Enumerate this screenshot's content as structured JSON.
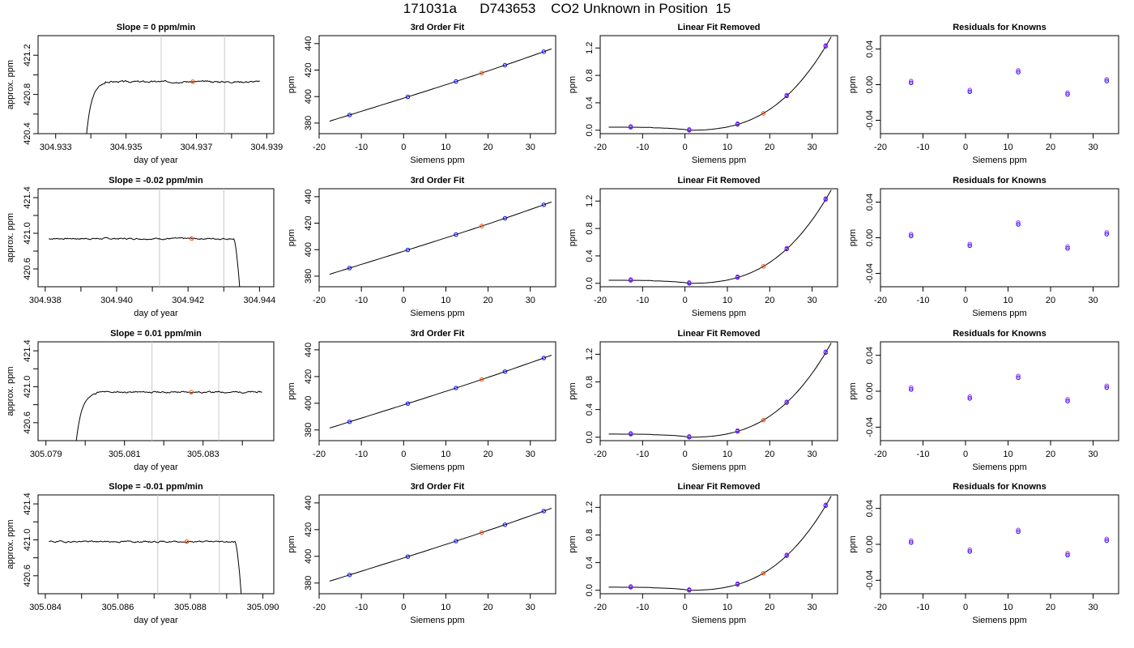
{
  "title": "171031a      D743653    CO2 Unknown in Position  15",
  "colors": {
    "trace": "#000000",
    "window_lines": "#c8c8c8",
    "known_marker": "#0000ff",
    "known_marker_alt": "#a020f0",
    "unknown_marker": "#ff4500",
    "axis": "#000000"
  },
  "rows": [
    {
      "trace": {
        "title": "Slope =  0  ppm/min",
        "xlabel": "day of year",
        "ylabel": "approx. ppm",
        "xlim": [
          304.9325,
          304.9392
        ],
        "ylim": [
          420.4,
          421.4
        ],
        "xticks": [
          304.933,
          304.934,
          304.935,
          304.936,
          304.937,
          304.938,
          304.939
        ],
        "xticklabels": [
          "304.933",
          "",
          "304.935",
          "",
          "304.937",
          "",
          "304.939"
        ],
        "yticks": [
          420.4,
          420.6,
          420.8,
          421.0,
          421.2
        ],
        "yticklabels": [
          "420.4",
          "",
          "420.8",
          "",
          "421.2"
        ],
        "window": [
          304.936,
          304.9378
        ],
        "shape": "rise",
        "t0": 304.9338,
        "t1": 304.9388,
        "level": 420.93,
        "unknown_point": [
          304.9369,
          420.93
        ],
        "seed": 3
      },
      "fit": {
        "title": "3rd Order Fit",
        "xlabel": "Siemens ppm",
        "ylabel": "ppm",
        "xlim": [
          -20,
          36
        ],
        "ylim": [
          372,
          446
        ],
        "xticks": [
          -20,
          -10,
          0,
          10,
          20,
          30
        ],
        "yticks": [
          380,
          400,
          420,
          440
        ],
        "knowns_x": [
          -12.8,
          1.0,
          12.4,
          24.0,
          33.2
        ],
        "unknown_x": 18.5,
        "curve": {
          "a": 398.8,
          "b": 1.0018,
          "c": 0.00095,
          "d": 2.2e-05
        }
      },
      "linear_removed": {
        "title": "Linear Fit Removed",
        "xlabel": "Siemens ppm",
        "ylabel": "ppm",
        "xlim": [
          -20,
          36
        ],
        "ylim": [
          -0.05,
          1.38
        ],
        "xticks": [
          -20,
          -10,
          0,
          10,
          20,
          30
        ],
        "yticks": [
          0.0,
          0.4,
          0.8,
          1.2
        ],
        "yticklabels": [
          "0.0",
          "0.4",
          "0.8",
          "1.2"
        ],
        "knowns_x": [
          -12.8,
          1.0,
          12.4,
          24.0,
          33.2
        ],
        "unknown_x": 18.5
      },
      "residuals": {
        "title": "Residuals for Knowns",
        "xlabel": "Siemens ppm",
        "ylabel": "ppm",
        "xlim": [
          -20,
          36
        ],
        "ylim": [
          -0.055,
          0.055
        ],
        "xticks": [
          -20,
          -10,
          0,
          10,
          20,
          30
        ],
        "yticks": [
          -0.04,
          0.0,
          0.04
        ],
        "yticklabels": [
          "-0.04",
          "0.00",
          "0.04"
        ],
        "x": [
          -12.8,
          1.0,
          12.4,
          24.0,
          33.2
        ],
        "y": [
          0.002,
          -0.008,
          0.014,
          -0.011,
          0.004
        ]
      }
    },
    {
      "trace": {
        "title": "Slope =  -0.02  ppm/min",
        "xlabel": "day of year",
        "ylabel": "approx. ppm",
        "xlim": [
          304.9378,
          304.9444
        ],
        "ylim": [
          420.4,
          421.5
        ],
        "xticks": [
          304.938,
          304.939,
          304.94,
          304.941,
          304.942,
          304.943,
          304.944
        ],
        "xticklabels": [
          "304.938",
          "",
          "304.940",
          "",
          "304.942",
          "",
          "304.944"
        ],
        "yticks": [
          420.6,
          420.8,
          421.0,
          421.2,
          421.4
        ],
        "yticklabels": [
          "420.6",
          "",
          "421.0",
          "",
          "421.4"
        ],
        "window": [
          304.9412,
          304.943
        ],
        "shape": "drop",
        "t0": 304.9381,
        "t1": 304.94355,
        "level": 420.94,
        "unknown_point": [
          304.9421,
          420.94
        ],
        "seed": 7
      },
      "fit": {
        "title": "3rd Order Fit",
        "xlabel": "Siemens ppm",
        "ylabel": "ppm",
        "xlim": [
          -20,
          36
        ],
        "ylim": [
          372,
          446
        ],
        "xticks": [
          -20,
          -10,
          0,
          10,
          20,
          30
        ],
        "yticks": [
          380,
          400,
          420,
          440
        ],
        "knowns_x": [
          -12.8,
          1.0,
          12.4,
          24.0,
          33.2
        ],
        "unknown_x": 18.5,
        "curve": {
          "a": 398.8,
          "b": 1.0018,
          "c": 0.00095,
          "d": 2.2e-05
        }
      },
      "linear_removed": {
        "title": "Linear Fit Removed",
        "xlabel": "Siemens ppm",
        "ylabel": "ppm",
        "xlim": [
          -20,
          36
        ],
        "ylim": [
          -0.05,
          1.38
        ],
        "xticks": [
          -20,
          -10,
          0,
          10,
          20,
          30
        ],
        "yticks": [
          0.0,
          0.4,
          0.8,
          1.2
        ],
        "yticklabels": [
          "0.0",
          "0.4",
          "0.8",
          "1.2"
        ],
        "knowns_x": [
          -12.8,
          1.0,
          12.4,
          24.0,
          33.2
        ],
        "unknown_x": 18.5
      },
      "residuals": {
        "title": "Residuals for Knowns",
        "xlabel": "Siemens ppm",
        "ylabel": "ppm",
        "xlim": [
          -20,
          36
        ],
        "ylim": [
          -0.055,
          0.055
        ],
        "xticks": [
          -20,
          -10,
          0,
          10,
          20,
          30
        ],
        "yticks": [
          -0.04,
          0.0,
          0.04
        ],
        "yticklabels": [
          "-0.04",
          "0.00",
          "0.04"
        ],
        "x": [
          -12.8,
          1.0,
          12.4,
          24.0,
          33.2
        ],
        "y": [
          0.002,
          -0.009,
          0.015,
          -0.012,
          0.004
        ]
      }
    },
    {
      "trace": {
        "title": "Slope =  0.01  ppm/min",
        "xlabel": "day of year",
        "ylabel": "approx. ppm",
        "xlim": [
          305.0788,
          305.0848
        ],
        "ylim": [
          420.4,
          421.5
        ],
        "xticks": [
          305.079,
          305.08,
          305.081,
          305.082,
          305.083,
          305.084
        ],
        "xticklabels": [
          "305.079",
          "",
          "305.081",
          "",
          "305.083",
          ""
        ],
        "yticks": [
          420.6,
          420.8,
          421.0,
          421.2,
          421.4
        ],
        "yticklabels": [
          "420.6",
          "",
          "421.0",
          "",
          "421.4"
        ],
        "window": [
          305.0817,
          305.0834
        ],
        "shape": "rise",
        "t0": 305.0797,
        "t1": 305.0845,
        "level": 420.94,
        "unknown_point": [
          305.0827,
          420.94
        ],
        "seed": 11
      },
      "fit": {
        "title": "3rd Order Fit",
        "xlabel": "Siemens ppm",
        "ylabel": "ppm",
        "xlim": [
          -20,
          36
        ],
        "ylim": [
          372,
          446
        ],
        "xticks": [
          -20,
          -10,
          0,
          10,
          20,
          30
        ],
        "yticks": [
          380,
          400,
          420,
          440
        ],
        "knowns_x": [
          -12.8,
          1.0,
          12.4,
          24.0,
          33.2
        ],
        "unknown_x": 18.5,
        "curve": {
          "a": 398.8,
          "b": 1.0018,
          "c": 0.00095,
          "d": 2.2e-05
        }
      },
      "linear_removed": {
        "title": "Linear Fit Removed",
        "xlabel": "Siemens ppm",
        "ylabel": "ppm",
        "xlim": [
          -20,
          36
        ],
        "ylim": [
          -0.05,
          1.38
        ],
        "xticks": [
          -20,
          -10,
          0,
          10,
          20,
          30
        ],
        "yticks": [
          0.0,
          0.4,
          0.8,
          1.2
        ],
        "yticklabels": [
          "0.0",
          "0.4",
          "0.8",
          "1.2"
        ],
        "knowns_x": [
          -12.8,
          1.0,
          12.4,
          24.0,
          33.2
        ],
        "unknown_x": 18.5
      },
      "residuals": {
        "title": "Residuals for Knowns",
        "xlabel": "Siemens ppm",
        "ylabel": "ppm",
        "xlim": [
          -20,
          36
        ],
        "ylim": [
          -0.055,
          0.055
        ],
        "xticks": [
          -20,
          -10,
          0,
          10,
          20,
          30
        ],
        "yticks": [
          -0.04,
          0.0,
          0.04
        ],
        "yticklabels": [
          "-0.04",
          "0.00",
          "0.04"
        ],
        "x": [
          -12.8,
          1.0,
          12.4,
          24.0,
          33.2
        ],
        "y": [
          0.002,
          -0.008,
          0.015,
          -0.011,
          0.004
        ]
      }
    },
    {
      "trace": {
        "title": "Slope =  -0.01  ppm/min",
        "xlabel": "day of year",
        "ylabel": "approx. ppm",
        "xlim": [
          305.0838,
          305.0903
        ],
        "ylim": [
          420.4,
          421.5
        ],
        "xticks": [
          305.084,
          305.085,
          305.086,
          305.087,
          305.088,
          305.089,
          305.09
        ],
        "xticklabels": [
          "305.084",
          "",
          "305.086",
          "",
          "305.088",
          "",
          "305.090"
        ],
        "yticks": [
          420.6,
          420.8,
          421.0,
          421.2,
          421.4
        ],
        "yticklabels": [
          "420.6",
          "",
          "421.0",
          "",
          "421.4"
        ],
        "window": [
          305.0871,
          305.0888
        ],
        "shape": "drop",
        "t0": 305.0841,
        "t1": 305.0895,
        "level": 420.98,
        "unknown_point": [
          305.0879,
          420.98
        ],
        "seed": 19
      },
      "fit": {
        "title": "3rd Order Fit",
        "xlabel": "Siemens ppm",
        "ylabel": "ppm",
        "xlim": [
          -20,
          36
        ],
        "ylim": [
          372,
          446
        ],
        "xticks": [
          -20,
          -10,
          0,
          10,
          20,
          30
        ],
        "yticks": [
          380,
          400,
          420,
          440
        ],
        "knowns_x": [
          -12.8,
          1.0,
          12.4,
          24.0,
          33.2
        ],
        "unknown_x": 18.5,
        "curve": {
          "a": 398.8,
          "b": 1.0018,
          "c": 0.00095,
          "d": 2.2e-05
        }
      },
      "linear_removed": {
        "title": "Linear Fit Removed",
        "xlabel": "Siemens ppm",
        "ylabel": "ppm",
        "xlim": [
          -20,
          36
        ],
        "ylim": [
          -0.05,
          1.38
        ],
        "xticks": [
          -20,
          -10,
          0,
          10,
          20,
          30
        ],
        "yticks": [
          0.0,
          0.4,
          0.8,
          1.2
        ],
        "yticklabels": [
          "0.0",
          "0.4",
          "0.8",
          "1.2"
        ],
        "knowns_x": [
          -12.8,
          1.0,
          12.4,
          24.0,
          33.2
        ],
        "unknown_x": 18.5
      },
      "residuals": {
        "title": "Residuals for Knowns",
        "xlabel": "Siemens ppm",
        "ylabel": "ppm",
        "xlim": [
          -20,
          36
        ],
        "ylim": [
          -0.055,
          0.055
        ],
        "xticks": [
          -20,
          -10,
          0,
          10,
          20,
          30
        ],
        "yticks": [
          -0.04,
          0.0,
          0.04
        ],
        "yticklabels": [
          "-0.04",
          "0.00",
          "0.04"
        ],
        "x": [
          -12.8,
          1.0,
          12.4,
          24.0,
          33.2
        ],
        "y": [
          0.002,
          -0.008,
          0.014,
          -0.012,
          0.004
        ]
      }
    }
  ],
  "chart_data": {
    "type": "scatter",
    "title": "171031a      D743653    CO2 Unknown in Position  15",
    "panels": [
      "time-series trace (day of year vs approx. ppm) per injection",
      "3rd Order Fit (Siemens ppm vs ppm)",
      "Linear Fit Removed (Siemens ppm vs ppm)",
      "Residuals for Knowns (Siemens ppm vs ppm)"
    ],
    "slopes_ppm_per_min": [
      0,
      -0.02,
      0.01,
      -0.01
    ],
    "knowns_siemens_ppm": [
      -12.8,
      1.0,
      12.4,
      24.0,
      33.2
    ],
    "unknown_siemens_ppm": 18.5,
    "residuals": [
      [
        0.002,
        -0.008,
        0.014,
        -0.011,
        0.004
      ],
      [
        0.002,
        -0.009,
        0.015,
        -0.012,
        0.004
      ],
      [
        0.002,
        -0.008,
        0.015,
        -0.011,
        0.004
      ],
      [
        0.002,
        -0.008,
        0.014,
        -0.012,
        0.004
      ]
    ],
    "grid": false
  }
}
